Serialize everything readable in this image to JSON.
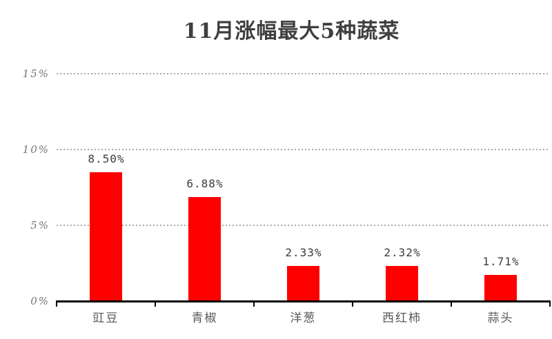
{
  "chart_data": {
    "type": "bar",
    "title": "11月涨幅最大5种蔬菜",
    "categories": [
      "豇豆",
      "青椒",
      "洋葱",
      "西红柿",
      "蒜头"
    ],
    "values": [
      8.5,
      6.88,
      2.33,
      2.32,
      1.71
    ],
    "value_labels": [
      "8.50%",
      "6.88%",
      "2.33%",
      "2.32%",
      "1.71%"
    ],
    "xlabel": "",
    "ylabel": "",
    "ylim": [
      0,
      15
    ],
    "yticks": [
      0,
      5,
      10,
      15
    ],
    "ytick_labels": [
      "0%",
      "5%",
      "10%",
      "15%"
    ],
    "grid": "horizontal dotted gridlines at 5%, 10%, 15%",
    "legend_position": "none",
    "colors": {
      "bar": "#ff0000",
      "axis": "#000000",
      "gridline": "#a8a8a8",
      "title_text": "#3f3f3f",
      "ytick_text": "#757575",
      "value_text": "#3b3b3b",
      "category_text": "#575757",
      "background": "#ffffff"
    }
  }
}
